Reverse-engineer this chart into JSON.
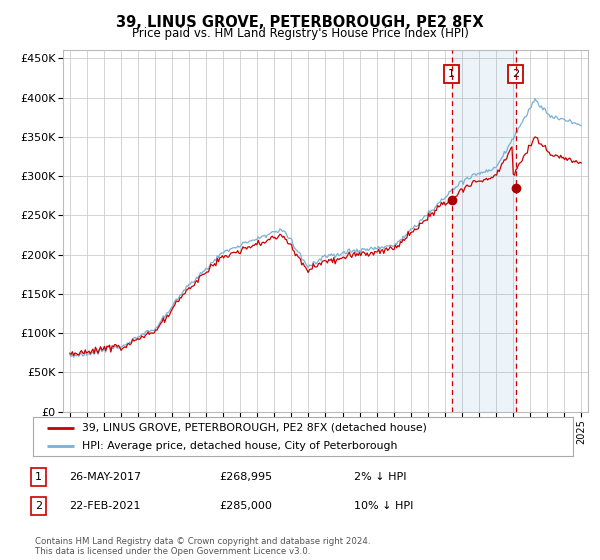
{
  "title": "39, LINUS GROVE, PETERBOROUGH, PE2 8FX",
  "subtitle": "Price paid vs. HM Land Registry's House Price Index (HPI)",
  "hpi_color": "#7ab0d4",
  "price_color": "#cc0000",
  "sale1_date": 2017.4,
  "sale1_price": 268995,
  "sale2_date": 2021.15,
  "sale2_price": 285000,
  "sale1_label": "26-MAY-2017",
  "sale1_amount": "£268,995",
  "sale1_hpi": "2% ↓ HPI",
  "sale2_label": "22-FEB-2021",
  "sale2_amount": "£285,000",
  "sale2_hpi": "10% ↓ HPI",
  "legend_line1": "39, LINUS GROVE, PETERBOROUGH, PE2 8FX (detached house)",
  "legend_line2": "HPI: Average price, detached house, City of Peterborough",
  "footer": "Contains HM Land Registry data © Crown copyright and database right 2024.\nThis data is licensed under the Open Government Licence v3.0.",
  "background_color": "#ffffff",
  "grid_color": "#cccccc",
  "ylim": [
    0,
    460000
  ],
  "yticks": [
    0,
    50000,
    100000,
    150000,
    200000,
    250000,
    300000,
    350000,
    400000,
    450000
  ],
  "ytick_labels": [
    "£0",
    "£50K",
    "£100K",
    "£150K",
    "£200K",
    "£250K",
    "£300K",
    "£350K",
    "£400K",
    "£450K"
  ]
}
